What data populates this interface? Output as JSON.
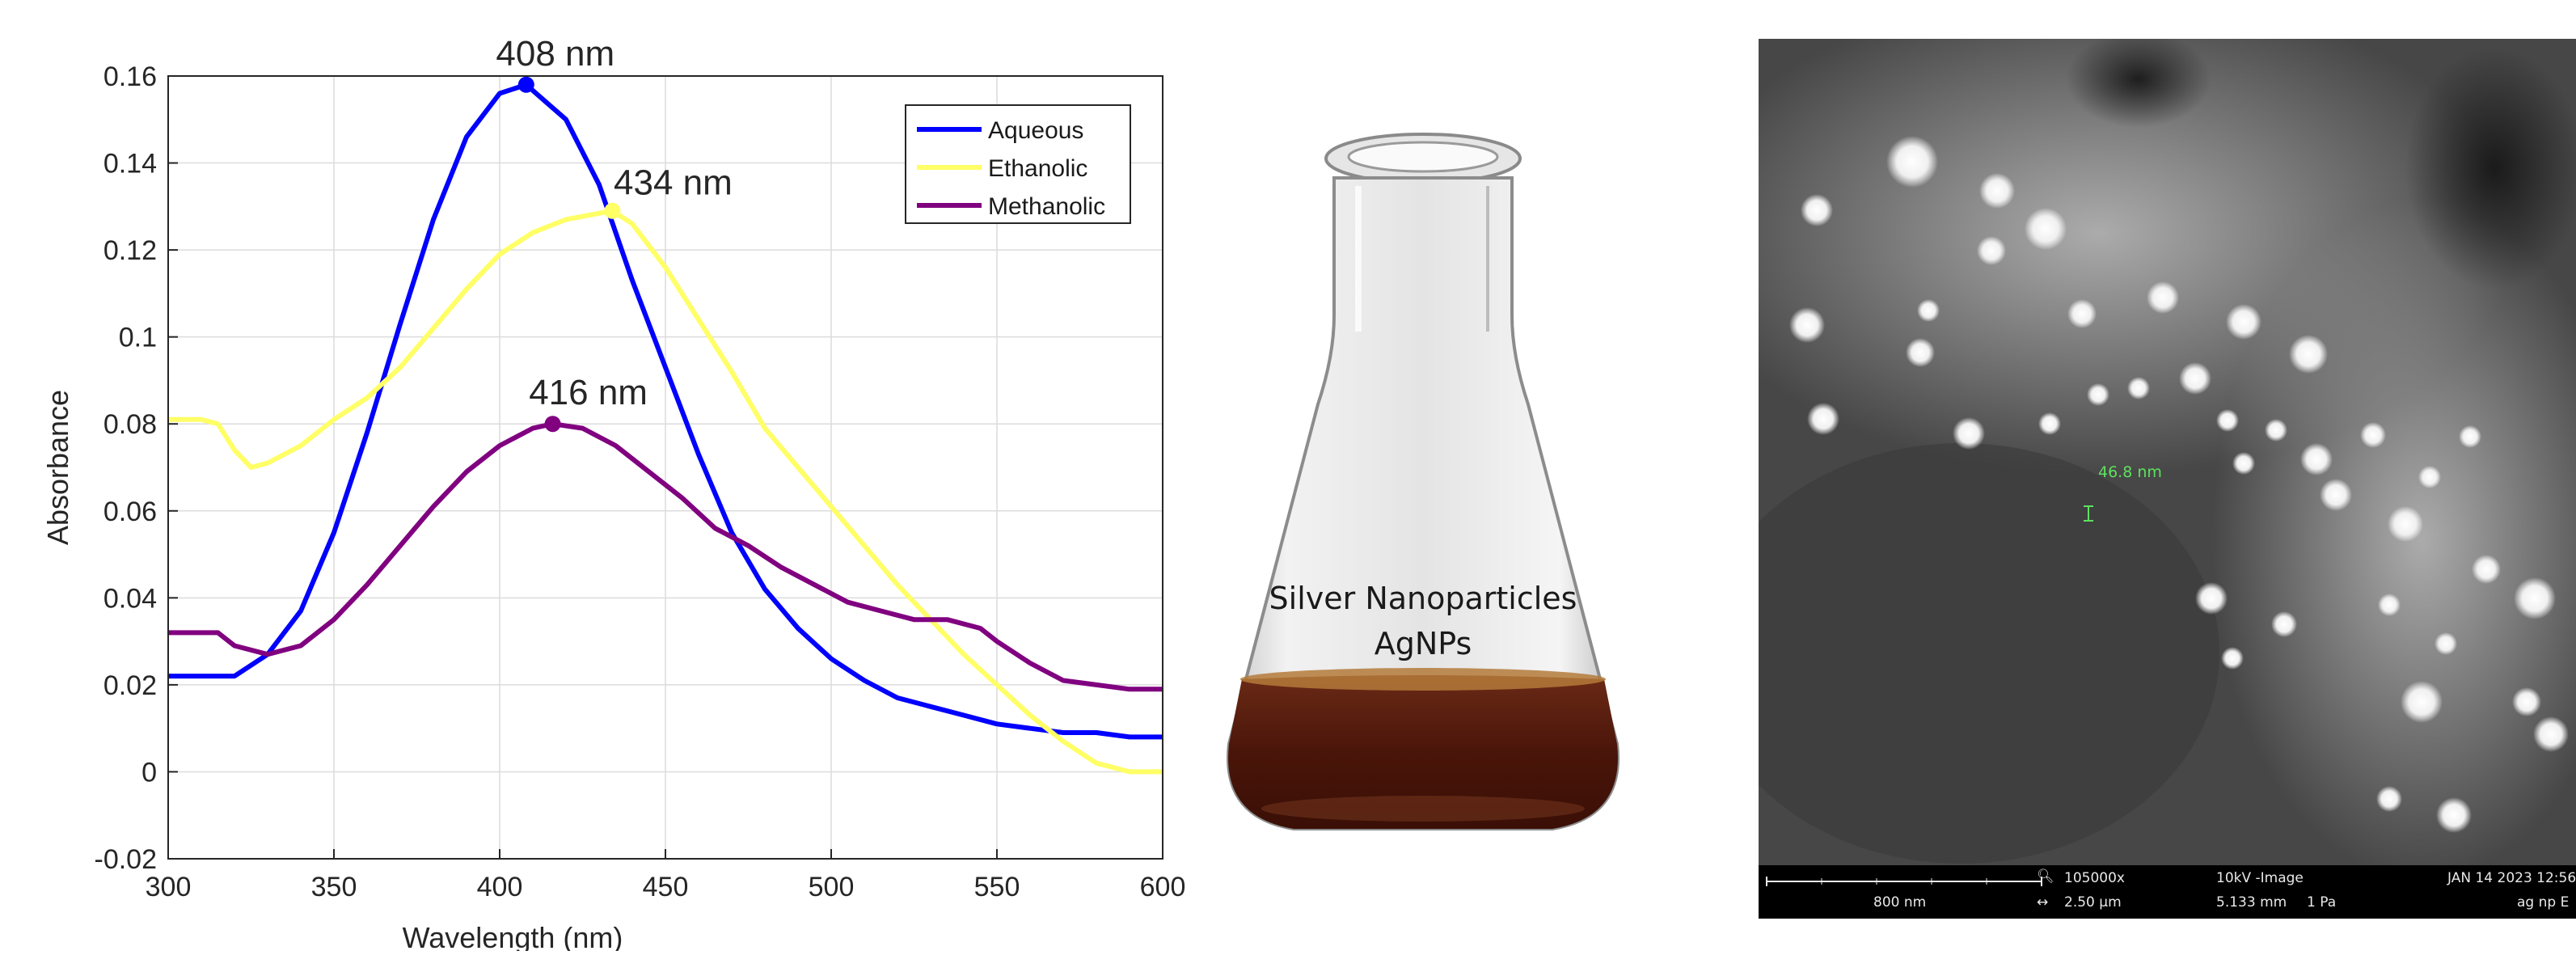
{
  "chart_data": {
    "type": "line",
    "xlabel": "Wavelength (nm)",
    "ylabel": "Absorbance",
    "xlim": [
      300,
      600
    ],
    "ylim": [
      -0.02,
      0.16
    ],
    "xticks": [
      300,
      350,
      400,
      450,
      500,
      550,
      600
    ],
    "yticks": [
      -0.02,
      0,
      0.02,
      0.04,
      0.06,
      0.08,
      0.1,
      0.12,
      0.14,
      0.16
    ],
    "ytick_labels": [
      "-0.02",
      "0",
      "0.02",
      "0.04",
      "0.06",
      "0.08",
      "0.1",
      "0.12",
      "0.14",
      "0.16"
    ],
    "grid": true,
    "legend_position": "top-right",
    "series": [
      {
        "name": "Aqueous",
        "color": "#0000ff",
        "x": [
          300,
          310,
          320,
          330,
          340,
          350,
          360,
          370,
          380,
          390,
          400,
          408,
          420,
          430,
          440,
          450,
          460,
          470,
          480,
          490,
          500,
          510,
          520,
          530,
          540,
          550,
          560,
          570,
          580,
          590,
          600
        ],
        "y": [
          0.022,
          0.022,
          0.022,
          0.027,
          0.037,
          0.055,
          0.078,
          0.103,
          0.127,
          0.146,
          0.156,
          0.158,
          0.15,
          0.135,
          0.113,
          0.093,
          0.073,
          0.055,
          0.042,
          0.033,
          0.026,
          0.021,
          0.017,
          0.015,
          0.013,
          0.011,
          0.01,
          0.009,
          0.009,
          0.008,
          0.008
        ]
      },
      {
        "name": "Ethanolic",
        "color": "#ffff66",
        "x": [
          300,
          310,
          315,
          320,
          325,
          330,
          340,
          350,
          360,
          370,
          380,
          390,
          400,
          410,
          420,
          434,
          440,
          450,
          460,
          470,
          480,
          490,
          500,
          510,
          520,
          530,
          540,
          550,
          560,
          570,
          580,
          590,
          600
        ],
        "y": [
          0.081,
          0.081,
          0.08,
          0.074,
          0.07,
          0.071,
          0.075,
          0.081,
          0.086,
          0.093,
          0.102,
          0.111,
          0.119,
          0.124,
          0.127,
          0.129,
          0.126,
          0.116,
          0.104,
          0.092,
          0.079,
          0.07,
          0.061,
          0.052,
          0.043,
          0.035,
          0.027,
          0.02,
          0.013,
          0.007,
          0.002,
          0,
          0
        ]
      },
      {
        "name": "Methanolic",
        "color": "#800080",
        "x": [
          300,
          310,
          315,
          320,
          330,
          340,
          350,
          360,
          370,
          380,
          390,
          400,
          410,
          416,
          425,
          435,
          445,
          455,
          465,
          475,
          485,
          495,
          505,
          515,
          525,
          535,
          545,
          550,
          560,
          570,
          580,
          590,
          600
        ],
        "y": [
          0.032,
          0.032,
          0.032,
          0.029,
          0.027,
          0.029,
          0.035,
          0.043,
          0.052,
          0.061,
          0.069,
          0.075,
          0.079,
          0.08,
          0.079,
          0.075,
          0.069,
          0.063,
          0.056,
          0.052,
          0.047,
          0.043,
          0.039,
          0.037,
          0.035,
          0.035,
          0.033,
          0.03,
          0.025,
          0.021,
          0.02,
          0.019,
          0.019
        ]
      }
    ],
    "annotations": [
      {
        "text": "408 nm",
        "x": 408,
        "y": 0.158,
        "color": "#0000ff",
        "marker": true
      },
      {
        "text": "434 nm",
        "x": 434,
        "y": 0.129,
        "color": "#ffff66",
        "marker": true
      },
      {
        "text": "416 nm",
        "x": 416,
        "y": 0.08,
        "color": "#800080",
        "marker": true
      }
    ]
  },
  "flask": {
    "line1": "Silver Nanoparticles",
    "line2": "AgNPs"
  },
  "sem": {
    "measurement": "46.8 nm",
    "scale_label": "800 nm",
    "magnification": "105000x",
    "field_width": "2.50 µm",
    "voltage_mode": "10kV -Image",
    "working_distance": "5.133 mm",
    "pressure": "1 Pa",
    "datetime": "JAN 14 2023 12:56",
    "sample": "ag np E"
  }
}
